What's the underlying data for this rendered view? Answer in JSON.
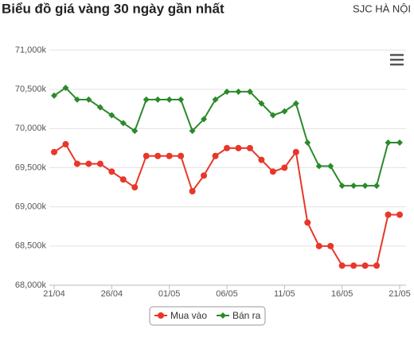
{
  "chart_data": {
    "type": "line",
    "title": "Biểu đồ giá vàng 30 ngày gần nhất",
    "subtitle": "SJC HÀ NỘI",
    "categories": [
      "21/04",
      null,
      null,
      null,
      null,
      "26/04",
      null,
      null,
      null,
      null,
      "01/05",
      null,
      null,
      null,
      null,
      "06/05",
      null,
      null,
      null,
      null,
      "11/05",
      null,
      null,
      null,
      null,
      "16/05",
      null,
      null,
      null,
      null,
      "21/05"
    ],
    "series": [
      {
        "name": "Mua vào",
        "color": "#e8372a",
        "marker": "circle",
        "values": [
          69700,
          69800,
          69550,
          69550,
          69550,
          69450,
          69350,
          69250,
          69650,
          69650,
          69650,
          69650,
          69200,
          69400,
          69650,
          69750,
          69750,
          69750,
          69600,
          69450,
          69500,
          69700,
          68800,
          68500,
          68500,
          68250,
          68250,
          68250,
          68250,
          68900,
          68900
        ]
      },
      {
        "name": "Bán ra",
        "color": "#2a8a2a",
        "marker": "diamond",
        "values": [
          70420,
          70520,
          70370,
          70370,
          70270,
          70170,
          70070,
          69970,
          70370,
          70370,
          70370,
          70370,
          69970,
          70120,
          70370,
          70470,
          70470,
          70470,
          70320,
          70170,
          70220,
          70320,
          69820,
          69520,
          69520,
          69270,
          69270,
          69270,
          69270,
          69820,
          69820
        ]
      }
    ],
    "ylim": [
      68000,
      71000
    ],
    "yticks": [
      {
        "value": 68000,
        "label": "68,000k"
      },
      {
        "value": 68500,
        "label": "68,500k"
      },
      {
        "value": 69000,
        "label": "69,000k"
      },
      {
        "value": 69500,
        "label": "69,500k"
      },
      {
        "value": 70000,
        "label": "70,000k"
      },
      {
        "value": 70500,
        "label": "70,500k"
      },
      {
        "value": 71000,
        "label": "71,000k"
      }
    ],
    "grid": true
  }
}
